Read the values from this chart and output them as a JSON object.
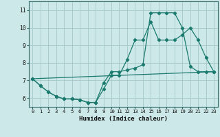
{
  "xlabel": "Humidex (Indice chaleur)",
  "bg_color": "#cce8e8",
  "grid_color": "#aacccc",
  "line_color": "#1a7a6e",
  "xlim": [
    -0.5,
    23.5
  ],
  "ylim": [
    5.5,
    11.5
  ],
  "xticks": [
    0,
    1,
    2,
    3,
    4,
    5,
    6,
    7,
    8,
    9,
    10,
    11,
    12,
    13,
    14,
    15,
    16,
    17,
    18,
    19,
    20,
    21,
    22,
    23
  ],
  "yticks": [
    6,
    7,
    8,
    9,
    10,
    11
  ],
  "curve1_x": [
    0,
    1,
    2,
    3,
    4,
    5,
    6,
    7,
    8,
    9,
    10,
    11,
    12,
    13,
    14,
    15,
    16,
    17,
    18,
    19,
    20,
    21,
    22,
    23
  ],
  "curve1_y": [
    7.1,
    6.7,
    6.35,
    6.1,
    5.95,
    5.95,
    5.9,
    5.75,
    5.75,
    6.5,
    7.3,
    7.3,
    8.2,
    9.3,
    9.3,
    10.35,
    9.3,
    9.3,
    9.3,
    9.6,
    10.0,
    9.3,
    8.3,
    7.5
  ],
  "curve2_x": [
    0,
    1,
    2,
    3,
    4,
    5,
    6,
    7,
    8,
    9,
    10,
    11,
    12,
    13,
    14,
    15,
    16,
    17,
    18,
    19,
    20,
    21,
    22,
    23
  ],
  "curve2_y": [
    7.1,
    6.7,
    6.35,
    6.1,
    5.95,
    5.95,
    5.9,
    5.75,
    5.75,
    6.85,
    7.5,
    7.5,
    7.6,
    7.7,
    7.9,
    10.85,
    10.85,
    10.85,
    10.85,
    10.0,
    7.8,
    7.5,
    7.5,
    7.5
  ],
  "curve3_x": [
    0,
    23
  ],
  "curve3_y": [
    7.1,
    7.5
  ]
}
